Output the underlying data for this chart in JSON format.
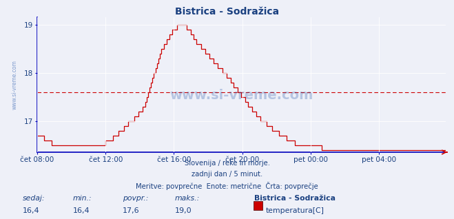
{
  "title": "Bistrica - Sodražica",
  "background_color": "#eef0f8",
  "plot_bg_color": "#eef0f8",
  "line_color": "#cc0000",
  "avg_line_color": "#cc0000",
  "axis_color": "#0000bb",
  "grid_color": "#ffffff",
  "text_color": "#1a4080",
  "ylim": [
    16.35,
    19.15
  ],
  "yticks": [
    17,
    18,
    19
  ],
  "xlabel_ticks": [
    "čet 08:00",
    "čet 12:00",
    "čet 16:00",
    "čet 20:00",
    "pet 00:00",
    "pet 04:00"
  ],
  "avg_value": 17.6,
  "subtitle1": "Slovenija / reke in morje.",
  "subtitle2": "zadnji dan / 5 minut.",
  "subtitle3": "Meritve: povprečne  Enote: metrične  Črta: povprečje",
  "stat_labels": [
    "sedaj:",
    "min.:",
    "povpr.:",
    "maks.:"
  ],
  "stat_values": [
    "16,4",
    "16,4",
    "17,6",
    "19,0"
  ],
  "legend_name": "Bistrica - Sodražica",
  "legend_label": "temperatura[C]",
  "watermark": "www.si-vreme.com",
  "watermark_color": "#2255aa",
  "y_data": [
    16.7,
    16.7,
    16.7,
    16.7,
    16.7,
    16.6,
    16.6,
    16.6,
    16.6,
    16.6,
    16.5,
    16.5,
    16.5,
    16.5,
    16.5,
    16.5,
    16.5,
    16.5,
    16.5,
    16.5,
    16.5,
    16.5,
    16.5,
    16.5,
    16.5,
    16.5,
    16.5,
    16.5,
    16.5,
    16.5,
    16.5,
    16.5,
    16.5,
    16.5,
    16.5,
    16.5,
    16.5,
    16.5,
    16.5,
    16.5,
    16.5,
    16.5,
    16.5,
    16.5,
    16.5,
    16.5,
    16.5,
    16.5,
    16.6,
    16.6,
    16.6,
    16.6,
    16.6,
    16.7,
    16.7,
    16.7,
    16.7,
    16.8,
    16.8,
    16.8,
    16.8,
    16.9,
    16.9,
    16.9,
    17.0,
    17.0,
    17.0,
    17.0,
    17.1,
    17.1,
    17.1,
    17.2,
    17.2,
    17.2,
    17.3,
    17.3,
    17.4,
    17.5,
    17.6,
    17.7,
    17.8,
    17.9,
    18.0,
    18.1,
    18.2,
    18.3,
    18.4,
    18.5,
    18.5,
    18.6,
    18.6,
    18.7,
    18.7,
    18.8,
    18.8,
    18.9,
    18.9,
    18.9,
    19.0,
    19.0,
    19.0,
    19.0,
    19.0,
    19.0,
    19.0,
    18.9,
    18.9,
    18.9,
    18.8,
    18.8,
    18.7,
    18.7,
    18.6,
    18.6,
    18.6,
    18.5,
    18.5,
    18.5,
    18.4,
    18.4,
    18.4,
    18.3,
    18.3,
    18.3,
    18.2,
    18.2,
    18.2,
    18.1,
    18.1,
    18.1,
    18.0,
    18.0,
    18.0,
    17.9,
    17.9,
    17.9,
    17.8,
    17.8,
    17.7,
    17.7,
    17.7,
    17.6,
    17.6,
    17.5,
    17.5,
    17.5,
    17.4,
    17.4,
    17.3,
    17.3,
    17.3,
    17.2,
    17.2,
    17.2,
    17.1,
    17.1,
    17.1,
    17.0,
    17.0,
    17.0,
    17.0,
    16.9,
    16.9,
    16.9,
    16.9,
    16.8,
    16.8,
    16.8,
    16.8,
    16.8,
    16.7,
    16.7,
    16.7,
    16.7,
    16.7,
    16.6,
    16.6,
    16.6,
    16.6,
    16.6,
    16.6,
    16.5,
    16.5,
    16.5,
    16.5,
    16.5,
    16.5,
    16.5,
    16.5,
    16.5,
    16.5,
    16.5,
    16.5,
    16.5,
    16.5,
    16.5,
    16.5,
    16.5,
    16.5,
    16.5,
    16.4,
    16.4,
    16.4,
    16.4,
    16.4,
    16.4,
    16.4,
    16.4,
    16.4,
    16.4,
    16.4,
    16.4,
    16.4,
    16.4,
    16.4,
    16.4,
    16.4,
    16.4,
    16.4,
    16.4,
    16.4,
    16.4,
    16.4,
    16.4,
    16.4,
    16.4,
    16.4,
    16.4,
    16.4,
    16.4,
    16.4,
    16.4,
    16.4,
    16.4,
    16.4,
    16.4,
    16.4,
    16.4,
    16.4,
    16.4,
    16.4,
    16.4,
    16.4,
    16.4,
    16.4,
    16.4,
    16.4,
    16.4,
    16.4,
    16.4,
    16.4,
    16.4,
    16.4,
    16.4,
    16.4,
    16.4,
    16.4,
    16.4,
    16.4,
    16.4,
    16.4,
    16.4,
    16.4,
    16.4,
    16.4,
    16.4,
    16.4,
    16.4,
    16.4,
    16.4,
    16.4,
    16.4,
    16.4,
    16.4,
    16.4,
    16.4,
    16.4,
    16.4,
    16.4,
    16.4,
    16.4,
    16.4,
    16.4,
    16.4,
    16.4,
    16.4,
    16.4,
    16.4
  ]
}
